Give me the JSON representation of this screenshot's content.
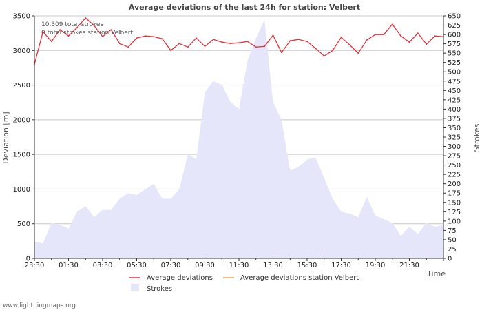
{
  "chart_data": {
    "type": "line",
    "title": "Average deviations of the last 24h for station: Velbert",
    "ylabel_left": "Deviation  [m]",
    "ylabel_right": "Strokes",
    "xlabel": "Time",
    "ylim_left": [
      0,
      3500
    ],
    "ylim_right": [
      0,
      650
    ],
    "yticks_left": [
      0,
      500,
      1000,
      1500,
      2000,
      2500,
      3000,
      3500
    ],
    "yticks_right": [
      0,
      25,
      50,
      75,
      100,
      125,
      150,
      175,
      200,
      225,
      250,
      275,
      300,
      325,
      350,
      375,
      400,
      425,
      450,
      475,
      500,
      525,
      550,
      575,
      600,
      625,
      650
    ],
    "x_start_hour": 23.5,
    "x_span_hours": 24,
    "xtick_labels": [
      "23:30",
      "01:30",
      "03:30",
      "05:30",
      "07:30",
      "09:30",
      "11:30",
      "13:30",
      "15:30",
      "17:30",
      "19:30",
      "21:30"
    ],
    "grid": true,
    "annotations": [
      "10.309 total strokes",
      "0 total strokes station Velbert"
    ],
    "legend": {
      "position": "bottom",
      "items": [
        {
          "label": "Average deviations",
          "color": "#e8303a",
          "kind": "line"
        },
        {
          "label": "Average deviations station Velbert",
          "color": "#f5a24a",
          "kind": "line"
        },
        {
          "label": "Strokes",
          "color": "#e6e6fa",
          "kind": "area"
        }
      ]
    },
    "series": [
      {
        "name": "Average deviations",
        "axis": "left",
        "color": "#e8303a",
        "x_hours": [
          0,
          0.5,
          1,
          1.5,
          2,
          2.5,
          3,
          3.5,
          4,
          4.5,
          5,
          5.5,
          6,
          6.5,
          7,
          7.5,
          8,
          8.5,
          9,
          9.5,
          10,
          10.5,
          11,
          11.5,
          12,
          12.5,
          13,
          13.5,
          14,
          14.5,
          15,
          15.5,
          16,
          16.5,
          17,
          17.5,
          18,
          18.5,
          19,
          19.5,
          20,
          20.5,
          21,
          21.5,
          22,
          22.5,
          23,
          23.5,
          24
        ],
        "values": [
          2800,
          3270,
          3130,
          3300,
          3210,
          3330,
          3470,
          3360,
          3200,
          3300,
          3100,
          3050,
          3180,
          3210,
          3200,
          3170,
          3000,
          3100,
          3050,
          3180,
          3060,
          3160,
          3120,
          3100,
          3110,
          3130,
          3050,
          3060,
          3220,
          2970,
          3140,
          3160,
          3130,
          3030,
          2920,
          3000,
          3190,
          3080,
          2960,
          3150,
          3230,
          3230,
          3380,
          3210,
          3120,
          3250,
          3090,
          3210,
          3200
        ]
      },
      {
        "name": "Average deviations station Velbert",
        "axis": "left",
        "color": "#f5a24a",
        "x_hours": [],
        "values": []
      },
      {
        "name": "Strokes",
        "axis": "right",
        "color": "#e6e6fa",
        "x_hours": [
          0,
          0.5,
          1,
          1.5,
          2,
          2.5,
          3,
          3.5,
          4,
          4.5,
          5,
          5.5,
          6,
          6.5,
          7,
          7.5,
          8,
          8.5,
          9,
          9.5,
          10,
          10.5,
          11,
          11.5,
          12,
          12.5,
          13,
          13.5,
          14,
          14.5,
          15,
          15.5,
          16,
          16.5,
          17,
          17.5,
          18,
          18.5,
          19,
          19.5,
          20,
          20.5,
          21,
          21.5,
          22,
          22.5,
          23,
          23.5,
          24
        ],
        "values": [
          45,
          40,
          95,
          90,
          80,
          125,
          140,
          110,
          130,
          130,
          160,
          175,
          170,
          185,
          200,
          160,
          160,
          185,
          280,
          265,
          445,
          475,
          465,
          420,
          400,
          530,
          590,
          640,
          420,
          370,
          235,
          245,
          265,
          270,
          215,
          160,
          125,
          120,
          110,
          165,
          115,
          105,
          95,
          60,
          85,
          65,
          95,
          85,
          90
        ]
      }
    ]
  },
  "footer": "www.lightningmaps.org"
}
